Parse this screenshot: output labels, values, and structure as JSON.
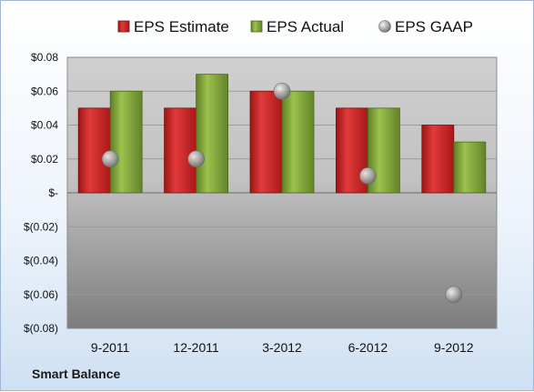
{
  "company": "Smart Balance",
  "chart_data": {
    "type": "bar",
    "categories": [
      "9-2011",
      "12-2011",
      "3-2012",
      "6-2012",
      "9-2012"
    ],
    "series": [
      {
        "name": "EPS Estimate",
        "type": "bar",
        "color": "#d32f2f",
        "values": [
          0.05,
          0.05,
          0.06,
          0.05,
          0.04
        ]
      },
      {
        "name": "EPS Actual",
        "type": "bar",
        "color": "#8cb043",
        "values": [
          0.06,
          0.07,
          0.06,
          0.05,
          0.03
        ]
      },
      {
        "name": "EPS GAAP",
        "type": "scatter",
        "color": "#a9a9a9",
        "values": [
          0.02,
          0.02,
          0.06,
          0.01,
          -0.06
        ]
      }
    ],
    "ylim": [
      -0.08,
      0.08
    ],
    "yticks": [
      0.08,
      0.06,
      0.04,
      0.02,
      0,
      -0.02,
      -0.04,
      -0.06,
      -0.08
    ],
    "ytick_labels": [
      "$0.08",
      "$0.06",
      "$0.04",
      "$0.02",
      "$-",
      "$(0.02)",
      "$(0.04)",
      "$(0.06)",
      "$(0.08)"
    ],
    "grid": true,
    "legend": "top"
  }
}
